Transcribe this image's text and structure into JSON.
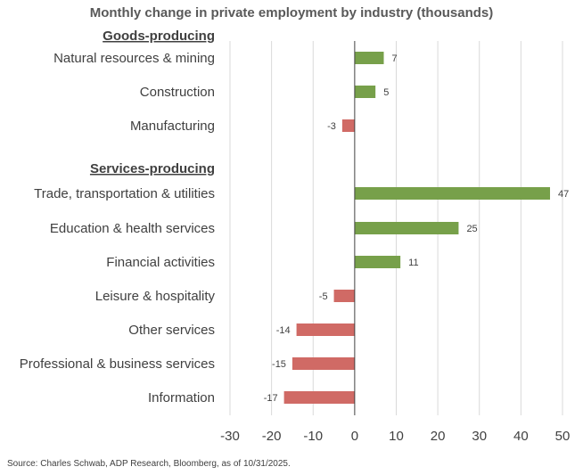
{
  "chart_data": {
    "type": "bar",
    "orientation": "horizontal",
    "title": "Monthly change in private employment by industry (thousands)",
    "groups": [
      {
        "name": "Goods-producing",
        "categories": [
          "Natural resources & mining",
          "Construction",
          "Manufacturing"
        ],
        "values": [
          7,
          5,
          -3
        ]
      },
      {
        "name": "Services-producing",
        "categories": [
          "Trade, transportation & utilities",
          "Education & health services",
          "Financial activities",
          "Leisure & hospitality",
          "Other services",
          "Professional & business services",
          "Information"
        ],
        "values": [
          47,
          25,
          11,
          -5,
          -14,
          -15,
          -17
        ]
      }
    ],
    "xlim": [
      -30,
      50
    ],
    "xticks": [
      -30,
      -20,
      -10,
      0,
      10,
      20,
      30,
      40,
      50
    ],
    "xtick_labels": [
      "-30",
      "-20",
      "-10",
      "0",
      "10",
      "20",
      "30",
      "40",
      "50"
    ],
    "grid": "vertical",
    "legend": "none",
    "colors": {
      "positive": "#77A04A",
      "negative": "#D06A65",
      "grid": "#D9D9D9",
      "zero_line": "#404040",
      "text": "#404040"
    }
  },
  "source": "Source: Charles Schwab, ADP Research, Bloomberg, as of 10/31/2025."
}
